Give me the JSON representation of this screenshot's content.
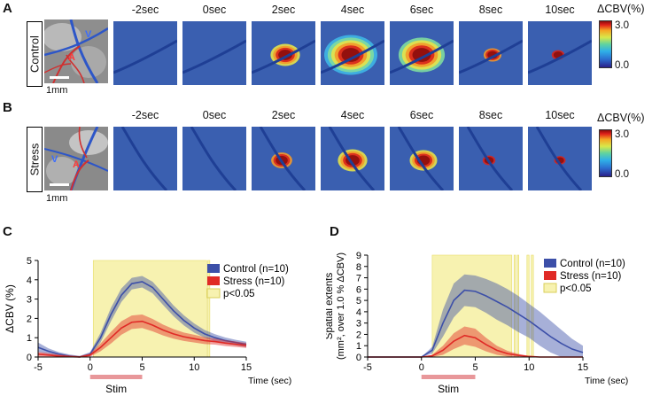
{
  "panels": {
    "a": {
      "letter": "A",
      "row_label": "Control"
    },
    "b": {
      "letter": "B",
      "row_label": "Stress"
    },
    "c": {
      "letter": "C"
    },
    "d": {
      "letter": "D"
    }
  },
  "time_labels": [
    "-2sec",
    "0sec",
    "2sec",
    "4sec",
    "6sec",
    "8sec",
    "10sec"
  ],
  "scale_label": "1mm",
  "colorbar": {
    "title": "ΔCBV(%)",
    "max": "3.0",
    "min": "0.0"
  },
  "vessel_labels": {
    "vein": "V",
    "artery": "A"
  },
  "heat_intensity": {
    "control": [
      0.0,
      0.05,
      0.55,
      1.0,
      0.85,
      0.35,
      0.3
    ],
    "stress": [
      0.0,
      0.03,
      0.45,
      0.55,
      0.5,
      0.3,
      0.25
    ]
  },
  "colors": {
    "control": "#3c4fa8",
    "stress": "#e02a26",
    "sig": "#f7f2b0",
    "stim": "#e8979a",
    "map_bg": "#3a5fb0"
  },
  "chart_data": [
    {
      "type": "line",
      "panel": "C",
      "title": "",
      "xlabel": "Time (sec)",
      "ylabel": "ΔCBV (%)",
      "xlim": [
        -5,
        15
      ],
      "ylim": [
        0,
        5
      ],
      "xticks": [
        -5,
        0,
        5,
        10,
        15
      ],
      "yticks": [
        0,
        1,
        2,
        3,
        4,
        5
      ],
      "x": [
        -5,
        -4,
        -3,
        -2,
        -1,
        0,
        1,
        2,
        3,
        4,
        5,
        6,
        7,
        8,
        9,
        10,
        11,
        12,
        13,
        14,
        15
      ],
      "series": [
        {
          "name": "Control (n=10)",
          "values": [
            0.5,
            0.3,
            0.15,
            0.05,
            0.0,
            0.15,
            1.0,
            2.2,
            3.2,
            3.8,
            3.9,
            3.6,
            3.0,
            2.4,
            1.9,
            1.5,
            1.2,
            1.0,
            0.85,
            0.75,
            0.65
          ],
          "err": [
            0.25,
            0.15,
            0.1,
            0.08,
            0.06,
            0.1,
            0.25,
            0.35,
            0.35,
            0.3,
            0.3,
            0.3,
            0.3,
            0.28,
            0.26,
            0.24,
            0.2,
            0.18,
            0.16,
            0.14,
            0.14
          ]
        },
        {
          "name": "Stress (n=10)",
          "values": [
            0.15,
            0.1,
            0.05,
            0.02,
            0.0,
            0.1,
            0.5,
            1.0,
            1.5,
            1.8,
            1.85,
            1.65,
            1.4,
            1.2,
            1.05,
            0.95,
            0.85,
            0.8,
            0.72,
            0.66,
            0.6
          ],
          "err": [
            0.12,
            0.1,
            0.08,
            0.06,
            0.05,
            0.08,
            0.2,
            0.3,
            0.35,
            0.35,
            0.35,
            0.32,
            0.28,
            0.25,
            0.22,
            0.2,
            0.18,
            0.16,
            0.15,
            0.14,
            0.13
          ]
        }
      ],
      "significance": {
        "label": "p<0.05",
        "spans": [
          [
            0.3,
            11.2
          ],
          [
            11.3,
            11.5
          ]
        ]
      },
      "stim": {
        "label": "Stim",
        "range": [
          0,
          5
        ]
      },
      "legend_position": "top-right"
    },
    {
      "type": "line",
      "panel": "D",
      "title": "",
      "xlabel": "Time (sec)",
      "ylabel": "Spatial extents",
      "ylabel2": "(mm², over 1.0 % ΔCBV)",
      "xlim": [
        -5,
        15
      ],
      "ylim": [
        0,
        9
      ],
      "xticks": [
        -5,
        0,
        5,
        10,
        15
      ],
      "yticks": [
        0,
        1,
        2,
        3,
        4,
        5,
        6,
        7,
        8,
        9
      ],
      "x": [
        -5,
        -4,
        -3,
        -2,
        -1,
        0,
        1,
        2,
        3,
        4,
        5,
        6,
        7,
        8,
        9,
        10,
        11,
        12,
        13,
        14,
        15
      ],
      "series": [
        {
          "name": "Control (n=10)",
          "values": [
            0,
            0,
            0,
            0,
            0,
            0,
            0.6,
            3.0,
            5.0,
            5.9,
            5.8,
            5.4,
            4.9,
            4.4,
            3.8,
            3.2,
            2.5,
            1.8,
            1.2,
            0.7,
            0.4
          ],
          "err": [
            0,
            0,
            0,
            0,
            0,
            0,
            0.3,
            1.2,
            1.5,
            1.4,
            1.4,
            1.5,
            1.6,
            1.6,
            1.6,
            1.5,
            1.5,
            1.4,
            1.2,
            0.9,
            0.6
          ]
        },
        {
          "name": "Stress (n=10)",
          "values": [
            0,
            0,
            0,
            0,
            0,
            0,
            0.1,
            0.6,
            1.4,
            1.9,
            1.7,
            1.1,
            0.6,
            0.3,
            0.15,
            0.05,
            0,
            0,
            0,
            0,
            0
          ],
          "err": [
            0,
            0,
            0,
            0,
            0,
            0,
            0.1,
            0.4,
            0.7,
            0.8,
            0.8,
            0.6,
            0.4,
            0.25,
            0.12,
            0.05,
            0,
            0,
            0,
            0,
            0
          ]
        }
      ],
      "significance": {
        "label": "p<0.05",
        "spans": [
          [
            1.0,
            8.4
          ],
          [
            8.6,
            8.75
          ],
          [
            8.9,
            9.05
          ],
          [
            9.8,
            10.0
          ],
          [
            10.2,
            10.4
          ]
        ]
      },
      "stim": {
        "label": "Stim",
        "range": [
          0,
          5
        ]
      },
      "legend_position": "top-right"
    }
  ]
}
